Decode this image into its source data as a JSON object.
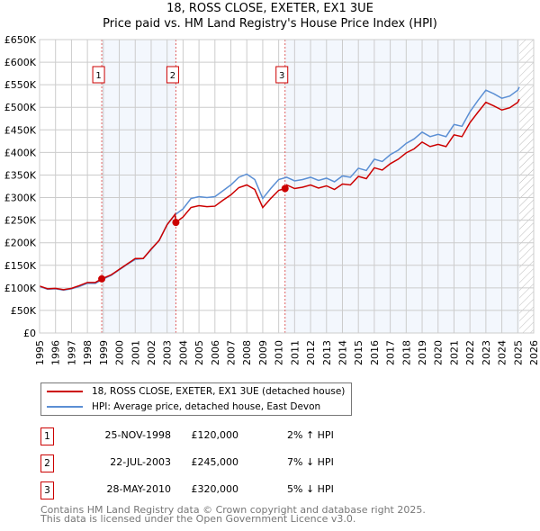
{
  "title": "18, ROSS CLOSE, EXETER, EX1 3UE",
  "subtitle": "Price paid vs. HM Land Registry's House Price Index (HPI)",
  "chart_data": {
    "type": "line",
    "title": "18, ROSS CLOSE, EXETER, EX1 3UE — Price paid vs. HM Land Registry's House Price Index (HPI)",
    "xlim": [
      1995,
      2026
    ],
    "ylim": [
      0,
      650000
    ],
    "x_ticks": [
      "1995",
      "1996",
      "1997",
      "1998",
      "1999",
      "2000",
      "2001",
      "2002",
      "2003",
      "2004",
      "2005",
      "2006",
      "2007",
      "2008",
      "2009",
      "2010",
      "2011",
      "2012",
      "2013",
      "2014",
      "2015",
      "2016",
      "2017",
      "2018",
      "2019",
      "2020",
      "2021",
      "2022",
      "2023",
      "2024",
      "2025",
      "2026"
    ],
    "y_ticks": [
      {
        "v": 0,
        "label": "£0"
      },
      {
        "v": 50000,
        "label": "£50K"
      },
      {
        "v": 100000,
        "label": "£100K"
      },
      {
        "v": 150000,
        "label": "£150K"
      },
      {
        "v": 200000,
        "label": "£200K"
      },
      {
        "v": 250000,
        "label": "£250K"
      },
      {
        "v": 300000,
        "label": "£300K"
      },
      {
        "v": 350000,
        "label": "£350K"
      },
      {
        "v": 400000,
        "label": "£400K"
      },
      {
        "v": 450000,
        "label": "£450K"
      },
      {
        "v": 500000,
        "label": "£500K"
      },
      {
        "v": 550000,
        "label": "£550K"
      },
      {
        "v": 600000,
        "label": "£600K"
      },
      {
        "v": 650000,
        "label": "£650K"
      }
    ],
    "grid": true,
    "forecast_from": 2025.1,
    "series": [
      {
        "name": "18, ROSS CLOSE, EXETER, EX1 3UE (detached house)",
        "color": "#cc0000",
        "x": [
          1995,
          1995.5,
          1996,
          1996.5,
          1997,
          1997.5,
          1998,
          1998.5,
          1998.9,
          1999.5,
          2000,
          2000.5,
          2001,
          2001.5,
          2002,
          2002.5,
          2003,
          2003.5,
          2003.55,
          2004,
          2004.5,
          2005,
          2005.5,
          2006,
          2006.5,
          2007,
          2007.5,
          2008,
          2008.5,
          2009,
          2009.5,
          2010,
          2010.4,
          2010.5,
          2011,
          2011.5,
          2012,
          2012.5,
          2013,
          2013.5,
          2014,
          2014.5,
          2015,
          2015.5,
          2016,
          2016.5,
          2017,
          2017.5,
          2018,
          2018.5,
          2019,
          2019.5,
          2020,
          2020.5,
          2021,
          2021.5,
          2022,
          2022.5,
          2023,
          2023.5,
          2024,
          2024.5,
          2025,
          2025.1
        ],
        "y": [
          104000,
          98000,
          99000,
          96000,
          99000,
          105000,
          112000,
          112000,
          120000,
          129000,
          141000,
          153000,
          165000,
          165000,
          186000,
          205000,
          240000,
          263000,
          245000,
          257000,
          278000,
          282000,
          280000,
          281000,
          294000,
          306000,
          322000,
          328000,
          318000,
          278000,
          298000,
          316000,
          320000,
          328000,
          320000,
          323000,
          328000,
          321000,
          326000,
          318000,
          330000,
          328000,
          347000,
          342000,
          366000,
          361000,
          375000,
          385000,
          399000,
          408000,
          423000,
          413000,
          418000,
          413000,
          439000,
          435000,
          466000,
          489000,
          511000,
          503000,
          494000,
          499000,
          511000,
          518000
        ]
      },
      {
        "name": "HPI: Average price, detached house, East Devon",
        "color": "#5b8fd4",
        "x": [
          1995,
          1995.5,
          1996,
          1996.5,
          1997,
          1997.5,
          1998,
          1998.5,
          1998.9,
          1999.5,
          2000,
          2000.5,
          2001,
          2001.5,
          2002,
          2002.5,
          2003,
          2003.5,
          2004,
          2004.5,
          2005,
          2005.5,
          2006,
          2006.5,
          2007,
          2007.5,
          2008,
          2008.5,
          2009,
          2009.5,
          2010,
          2010.5,
          2011,
          2011.5,
          2012,
          2012.5,
          2013,
          2013.5,
          2014,
          2014.5,
          2015,
          2015.5,
          2016,
          2016.5,
          2017,
          2017.5,
          2018,
          2018.5,
          2019,
          2019.5,
          2020,
          2020.5,
          2021,
          2021.5,
          2022,
          2022.5,
          2023,
          2023.5,
          2024,
          2024.5,
          2025,
          2025.1
        ],
        "y": [
          103000,
          97000,
          98000,
          95000,
          98000,
          103000,
          110000,
          110000,
          118000,
          128000,
          140000,
          152000,
          163000,
          165000,
          185000,
          205000,
          240000,
          262000,
          275000,
          298000,
          302000,
          300000,
          302000,
          315000,
          328000,
          345000,
          352000,
          340000,
          298000,
          320000,
          340000,
          345000,
          337000,
          340000,
          345000,
          338000,
          343000,
          335000,
          348000,
          345000,
          365000,
          360000,
          385000,
          380000,
          395000,
          405000,
          420000,
          430000,
          445000,
          435000,
          440000,
          435000,
          462000,
          458000,
          490000,
          515000,
          538000,
          530000,
          520000,
          525000,
          538000,
          545000
        ]
      }
    ],
    "sales": [
      {
        "label": "1",
        "date": "25-NOV-1998",
        "x": 1998.9,
        "price": 120000,
        "price_label": "£120,000",
        "hpi": "2% ↑ HPI"
      },
      {
        "label": "2",
        "date": "22-JUL-2003",
        "x": 2003.55,
        "price": 245000,
        "price_label": "£245,000",
        "hpi": "7% ↓ HPI"
      },
      {
        "label": "3",
        "date": "28-MAY-2010",
        "x": 2010.4,
        "price": 320000,
        "price_label": "£320,000",
        "hpi": "5% ↓ HPI"
      }
    ],
    "legend_placement": "below"
  },
  "footer": {
    "line1": "Contains HM Land Registry data © Crown copyright and database right 2025.",
    "line2": "This data is licensed under the Open Government Licence v3.0."
  }
}
